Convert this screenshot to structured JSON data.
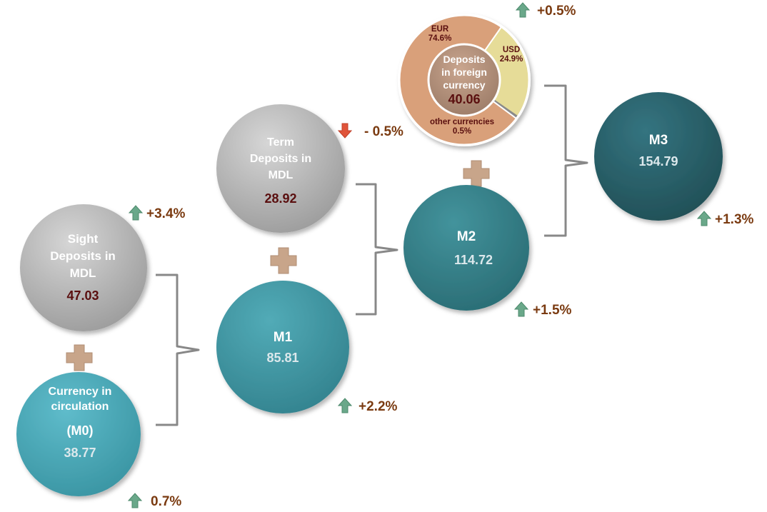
{
  "colors": {
    "grey": "#b3b3b3",
    "teal_light": "#4aa9b8",
    "teal_m1": "#3f98a4",
    "teal_m2": "#337f88",
    "teal_m3": "#2a5f67",
    "bracket": "#888888",
    "plus": "#c8a58a",
    "up_arrow": "#6aa88a",
    "down_arrow": "#e0543a",
    "change_text": "#7a3a10",
    "eur": "#d9a07a",
    "usd": "#e6dc98",
    "other": "#b0b0b0"
  },
  "nodes": {
    "m0": {
      "title": [
        "Currency in",
        "circulation"
      ],
      "code": "(M0)",
      "value": "38.77",
      "change": "0.7%",
      "direction": "up"
    },
    "sight": {
      "title": [
        "Sight",
        "Deposits in",
        "MDL"
      ],
      "value": "47.03",
      "change": "+3.4%",
      "direction": "up"
    },
    "m1": {
      "title": [
        "M1"
      ],
      "value": "85.81",
      "change": "+2.2%",
      "direction": "up"
    },
    "term": {
      "title": [
        "Term",
        "Deposits in",
        "MDL"
      ],
      "value": "28.92",
      "change": "- 0.5%",
      "direction": "down"
    },
    "m2": {
      "title": [
        "M2"
      ],
      "value": "114.72",
      "change": "+1.5%",
      "direction": "up"
    },
    "foreign": {
      "title": [
        "Deposits",
        "in foreign",
        "currency"
      ],
      "value": "40.06",
      "change": "+0.5%",
      "direction": "up"
    },
    "m3": {
      "title": [
        "M3"
      ],
      "value": "154.79",
      "change": "+1.3%",
      "direction": "up"
    }
  },
  "foreign_breakdown": [
    {
      "name": "EUR",
      "share_label": "74.6%",
      "share": 74.6
    },
    {
      "name": "USD",
      "share_label": "24.9%",
      "share": 24.9
    },
    {
      "name": "other currencies",
      "share_label": "0.5%",
      "share": 0.5
    }
  ]
}
